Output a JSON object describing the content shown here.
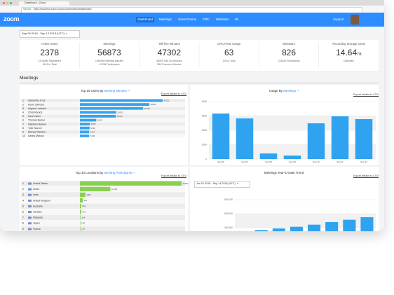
{
  "browser": {
    "tab_title": "Dashboard - Zoom",
    "secure": "Secure",
    "url": "https://success.zoom.us/account/metrics/dashboard"
  },
  "nav": {
    "logo": "zoom",
    "links": [
      "Dashboard",
      "Meetings",
      "Zoom Rooms",
      "CRC",
      "Webinars",
      "IM"
    ],
    "support": "Support"
  },
  "date_range": "Sep 06 2018 - Sep 13 2018 (UTC)",
  "stats": [
    {
      "label": "Active Users",
      "value": 2378,
      "details": [
        "23 Newly Registered",
        "8142 in Total"
      ]
    },
    {
      "label": "Meetings",
      "value": 56873,
      "details": [
        "1660948 Meeting Minutes",
        "91786 Participants"
      ]
    },
    {
      "label": "Toll-free Minutes",
      "value": 47302,
      "details": [
        "36090 Call Out Minutes",
        "856 Premium Minutes"
      ]
    },
    {
      "label": "CRC Ports Usage",
      "value": 63,
      "details": [
        "200 in Total"
      ]
    },
    {
      "label": "Webinars",
      "value": 826,
      "details": [
        "231644 Participants"
      ]
    },
    {
      "label": "Recording Storage Used",
      "value": 14.64,
      "unit": "TB",
      "details": [
        "Unlimited"
      ]
    }
  ],
  "section_title": "Meetings",
  "top_users": {
    "title": "Top 10 Users By",
    "metric": "Meeting Minutes",
    "export": "Export details to CSV",
    "rows": [
      {
        "rank": 1,
        "name": "Samantha Cruz",
        "value": 46211
      },
      {
        "rank": 2,
        "name": "Kevin Johnson",
        "value": 38811
      },
      {
        "rank": 3,
        "name": "Angela Lombard",
        "value": 35299
      },
      {
        "rank": 4,
        "name": "Chris Ramos",
        "value": 20331
      },
      {
        "rank": 5,
        "name": "Zane Haver",
        "value": 20019
      },
      {
        "rank": 6,
        "name": "Thomas Bamel",
        "value": 9153
      },
      {
        "rank": 7,
        "name": "Kathleen Barlow",
        "value": 5580
      },
      {
        "rank": 8,
        "name": "Tyler Nozrce",
        "value": 5390
      },
      {
        "rank": 9,
        "name": "Michael Weston",
        "value": 5137
      },
      {
        "rank": 10,
        "name": "Danny Marcus",
        "value": 5106
      }
    ]
  },
  "usage": {
    "title": "Usage By",
    "metric": "Meetings",
    "export": "Export details to CSV",
    "categories": [
      "Sep 06",
      "Sep 07",
      "Sep 08",
      "Sep 09",
      "Sep 10",
      "Sep 11",
      "Sep 12"
    ],
    "values": [
      3170,
      2830,
      390,
      244,
      2490,
      2975,
      2780
    ],
    "ylim": [
      0,
      4000
    ],
    "yticks": [
      0,
      1000,
      2000,
      3000,
      4000
    ]
  },
  "top_locations": {
    "title": "Top 10 Locations By",
    "metric": "Meeting Participants",
    "export": "Export details to CSV",
    "rows": [
      {
        "rank": 1,
        "name": "United States",
        "value": 33892
      },
      {
        "rank": 2,
        "name": "China",
        "value": 10135
      },
      {
        "rank": 3,
        "name": "India",
        "value": 1802
      },
      {
        "rank": 4,
        "name": "United Kingdom",
        "value": 921
      },
      {
        "rank": 5,
        "name": "Australia",
        "value": 384
      },
      {
        "rank": 6,
        "name": "Canada",
        "value": 410
      },
      {
        "rank": 7,
        "name": "Malaysia",
        "value": 164
      },
      {
        "rank": 8,
        "name": "Japan",
        "value": 130
      },
      {
        "rank": 9,
        "name": "France",
        "value": 128
      }
    ]
  },
  "trend": {
    "title": "Meetings Year-to-Date Trend",
    "export": "Export details to CSV",
    "date_range": "Jan 01 2018 - Sep 14 2018 (UTC)",
    "values": [
      210000,
      250000,
      285000,
      320000,
      365000,
      420000,
      470000,
      525000
    ],
    "ylim": [
      0,
      1000000
    ],
    "yticks": [
      {
        "value": 300000,
        "label": "300,000"
      },
      {
        "value": 600000,
        "label": "600,000"
      },
      {
        "value": 900000,
        "label": "900,000"
      }
    ]
  }
}
